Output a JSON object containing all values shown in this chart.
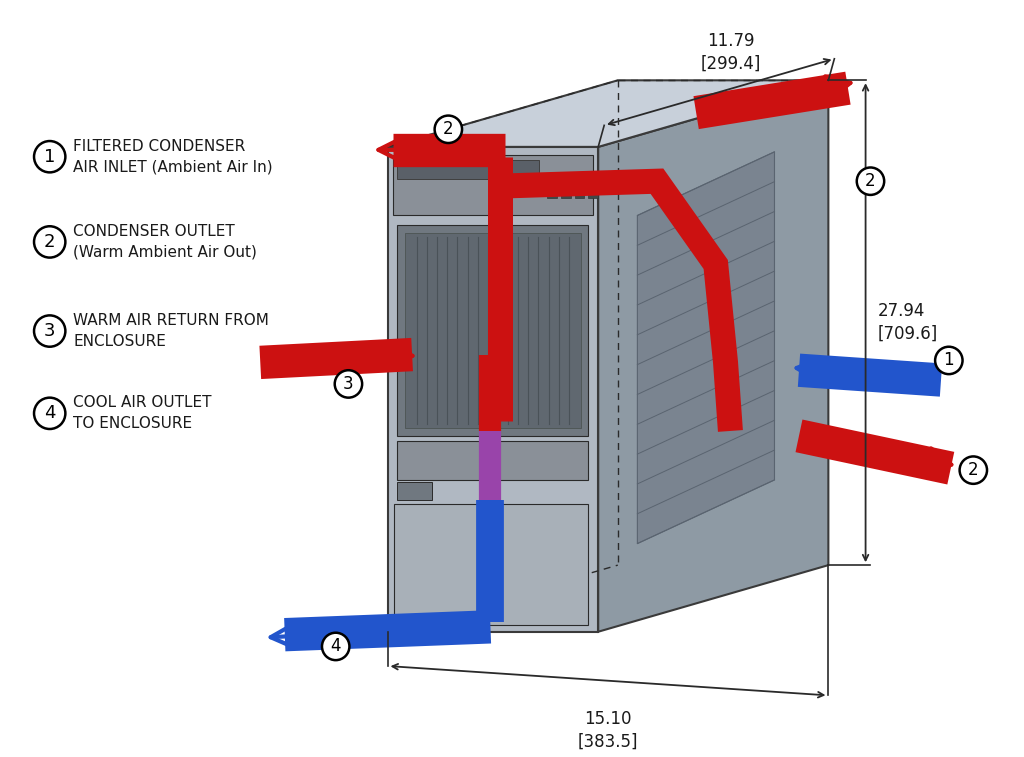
{
  "background_color": "#ffffff",
  "red_color": "#cc1111",
  "blue_color": "#2255cc",
  "box_front_color": "#b0b8c2",
  "box_right_color": "#8e9aa4",
  "box_top_color": "#c8d0da",
  "box_edge_color": "#3a3a3a",
  "dim_color": "#2a2a2a",
  "text_color": "#1a1a1a",
  "legend": [
    {
      "num": "1",
      "lines": [
        "FILTERED CONDENSER",
        "AIR INLET (Ambient Air In)"
      ]
    },
    {
      "num": "2",
      "lines": [
        "CONDENSER OUTLET",
        "(Warm Ambient Air Out)"
      ]
    },
    {
      "num": "3",
      "lines": [
        "WARM AIR RETURN FROM",
        "ENCLOSURE"
      ]
    },
    {
      "num": "4",
      "lines": [
        "COOL AIR OUTLET",
        "TO ENCLOSURE"
      ]
    }
  ],
  "dim1_label": "11.79\n[299.4]",
  "dim2_label": "27.94\n[709.6]",
  "dim3_label": "15.10\n[383.5]"
}
